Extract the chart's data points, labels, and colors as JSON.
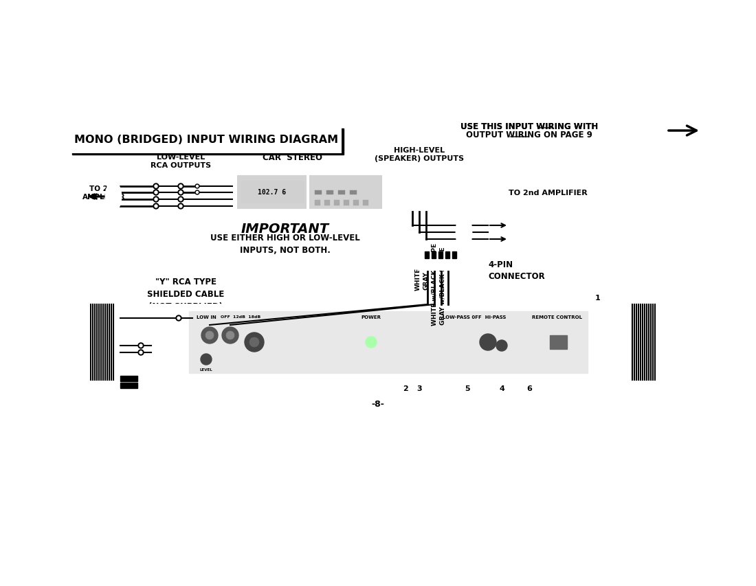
{
  "title": "MONO (BRIDGED) INPUT WIRING DIAGRAM",
  "top_right_line1": "USE THIS INPUT WIRING WITH",
  "top_right_line2": "OUTPUT WIRING ON PAGE 9",
  "label_low_level": "LOW-LEVEL\nRCA OUTPUTS",
  "label_car_stereo": "CAR  STEREO",
  "label_high_level": "HIGH-LEVEL\n(SPEAKER) OUTPUTS",
  "label_to_2nd_amp_left": "TO 2nd\nAMPLIFIER",
  "label_to_2nd_amp_right": "TO 2nd AMPLIFIER",
  "label_important": "IMPORTANT",
  "label_use_either": "USE EITHER HIGH OR LOW-LEVEL\nINPUTS, NOT BOTH.",
  "label_y_rca": "\"Y\" RCA TYPE\nSHIELDED CABLE\n(NOT SUPPLIED)",
  "label_white": "WHITE",
  "label_gray": "GRAY",
  "label_white_black": "WHITE w/BLACK STRIPE",
  "label_gray_black": "GRAY w/BLACK STRIPE",
  "label_4pin": "4-PIN\nCONNECTOR",
  "label_page": "-8-",
  "bg_color": "#ffffff",
  "fg_color": "#000000",
  "numbers": [
    "1",
    "2",
    "3",
    "4",
    "5",
    "6"
  ]
}
